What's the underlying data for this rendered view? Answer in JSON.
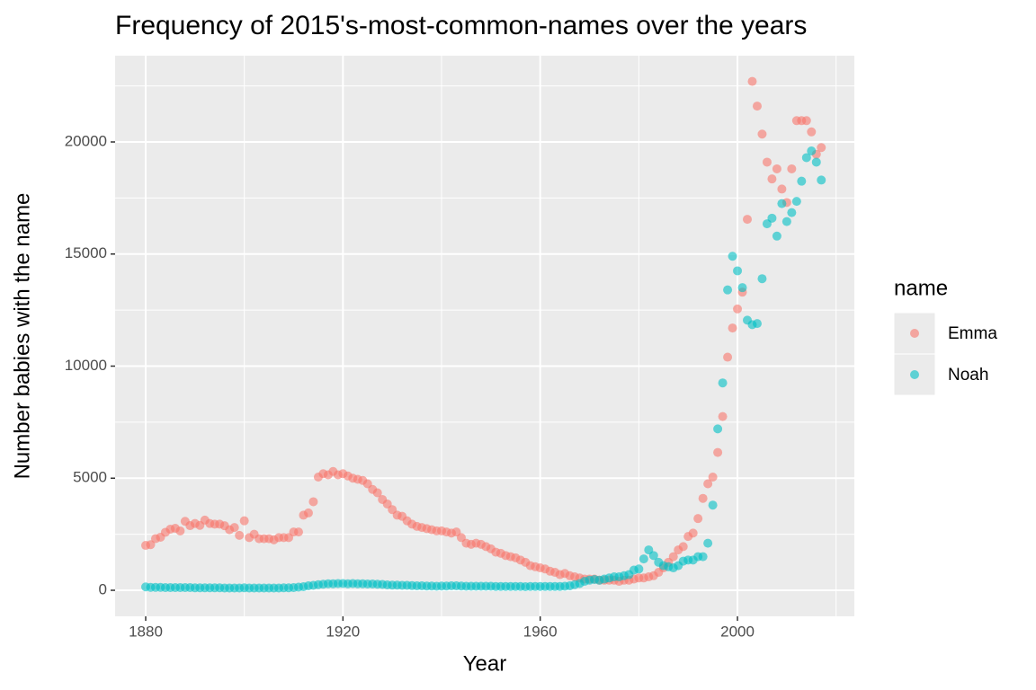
{
  "chart_data": {
    "type": "scatter",
    "title": "Frequency of 2015's-most-common-names over the years",
    "x_label": "Year",
    "y_label": "Number babies with the name",
    "legend_title": "name",
    "legend_position": "right",
    "grid": true,
    "point_opacity": 0.6,
    "xlim": [
      1873.8,
      2023.7
    ],
    "xticks": [
      1880,
      1920,
      1960,
      2000
    ],
    "ylim": [
      -1162,
      23848
    ],
    "yticks": [
      0,
      5000,
      10000,
      15000,
      20000
    ],
    "x": [
      1880,
      1881,
      1882,
      1883,
      1884,
      1885,
      1886,
      1887,
      1888,
      1889,
      1890,
      1891,
      1892,
      1893,
      1894,
      1895,
      1896,
      1897,
      1898,
      1899,
      1900,
      1901,
      1902,
      1903,
      1904,
      1905,
      1906,
      1907,
      1908,
      1909,
      1910,
      1911,
      1912,
      1913,
      1914,
      1915,
      1916,
      1917,
      1918,
      1919,
      1920,
      1921,
      1922,
      1923,
      1924,
      1925,
      1926,
      1927,
      1928,
      1929,
      1930,
      1931,
      1932,
      1933,
      1934,
      1935,
      1936,
      1937,
      1938,
      1939,
      1940,
      1941,
      1942,
      1943,
      1944,
      1945,
      1946,
      1947,
      1948,
      1949,
      1950,
      1951,
      1952,
      1953,
      1954,
      1955,
      1956,
      1957,
      1958,
      1959,
      1960,
      1961,
      1962,
      1963,
      1964,
      1965,
      1966,
      1967,
      1968,
      1969,
      1970,
      1971,
      1972,
      1973,
      1974,
      1975,
      1976,
      1977,
      1978,
      1979,
      1980,
      1981,
      1982,
      1983,
      1984,
      1985,
      1986,
      1987,
      1988,
      1989,
      1990,
      1991,
      1992,
      1993,
      1994,
      1995,
      1996,
      1997,
      1998,
      1999,
      2000,
      2001,
      2002,
      2003,
      2004,
      2005,
      2006,
      2007,
      2008,
      2009,
      2010,
      2011,
      2012,
      2013,
      2014,
      2015,
      2016,
      2017
    ],
    "series": [
      {
        "name": "Emma",
        "color": "#F8766D",
        "values": [
          2003,
          2034,
          2303,
          2367,
          2587,
          2728,
          2764,
          2647,
          3076,
          2884,
          2980,
          2897,
          3130,
          2980,
          2950,
          2950,
          2880,
          2700,
          2800,
          2450,
          3100,
          2350,
          2500,
          2300,
          2300,
          2300,
          2250,
          2350,
          2350,
          2350,
          2600,
          2600,
          3350,
          3450,
          3950,
          5050,
          5200,
          5150,
          5300,
          5150,
          5200,
          5100,
          5000,
          4950,
          4900,
          4750,
          4500,
          4350,
          4050,
          3850,
          3600,
          3350,
          3300,
          3100,
          2950,
          2850,
          2800,
          2750,
          2700,
          2650,
          2650,
          2600,
          2550,
          2600,
          2350,
          2100,
          2050,
          2100,
          2050,
          1950,
          1850,
          1700,
          1650,
          1550,
          1500,
          1450,
          1350,
          1250,
          1100,
          1050,
          1000,
          950,
          850,
          800,
          700,
          750,
          650,
          600,
          550,
          500,
          500,
          500,
          450,
          450,
          450,
          450,
          400,
          450,
          450,
          500,
          550,
          550,
          600,
          650,
          800,
          1000,
          1250,
          1500,
          1800,
          1950,
          2400,
          2550,
          3200,
          4100,
          4750,
          5050,
          6150,
          7750,
          10400,
          11700,
          12550,
          13300,
          16550,
          22700,
          21600,
          20350,
          19100,
          18350,
          18800,
          17900,
          17300,
          18800,
          20950,
          20950,
          20950,
          20450,
          19450,
          19750
        ]
      },
      {
        "name": "Noah",
        "color": "#00BFC4",
        "values": [
          150,
          130,
          130,
          130,
          120,
          120,
          120,
          120,
          120,
          120,
          110,
          110,
          110,
          110,
          110,
          110,
          100,
          100,
          100,
          100,
          110,
          100,
          100,
          100,
          100,
          100,
          100,
          100,
          110,
          110,
          120,
          140,
          160,
          200,
          220,
          250,
          270,
          290,
          290,
          300,
          300,
          290,
          300,
          290,
          290,
          280,
          280,
          270,
          260,
          240,
          230,
          230,
          220,
          220,
          210,
          200,
          200,
          190,
          190,
          180,
          190,
          190,
          200,
          200,
          190,
          180,
          180,
          180,
          180,
          180,
          180,
          170,
          170,
          170,
          170,
          170,
          170,
          160,
          170,
          170,
          170,
          170,
          170,
          170,
          170,
          180,
          200,
          250,
          300,
          400,
          450,
          480,
          450,
          500,
          550,
          600,
          600,
          650,
          700,
          900,
          950,
          1400,
          1800,
          1550,
          1250,
          1100,
          1050,
          1000,
          1100,
          1300,
          1350,
          1350,
          1500,
          1500,
          2100,
          3800,
          7200,
          9250,
          13400,
          14900,
          14250,
          13500,
          12050,
          11850,
          11900,
          13900,
          16350,
          16600,
          15800,
          17250,
          16450,
          16850,
          17350,
          18250,
          19300,
          19600,
          19100,
          18300
        ]
      }
    ]
  }
}
